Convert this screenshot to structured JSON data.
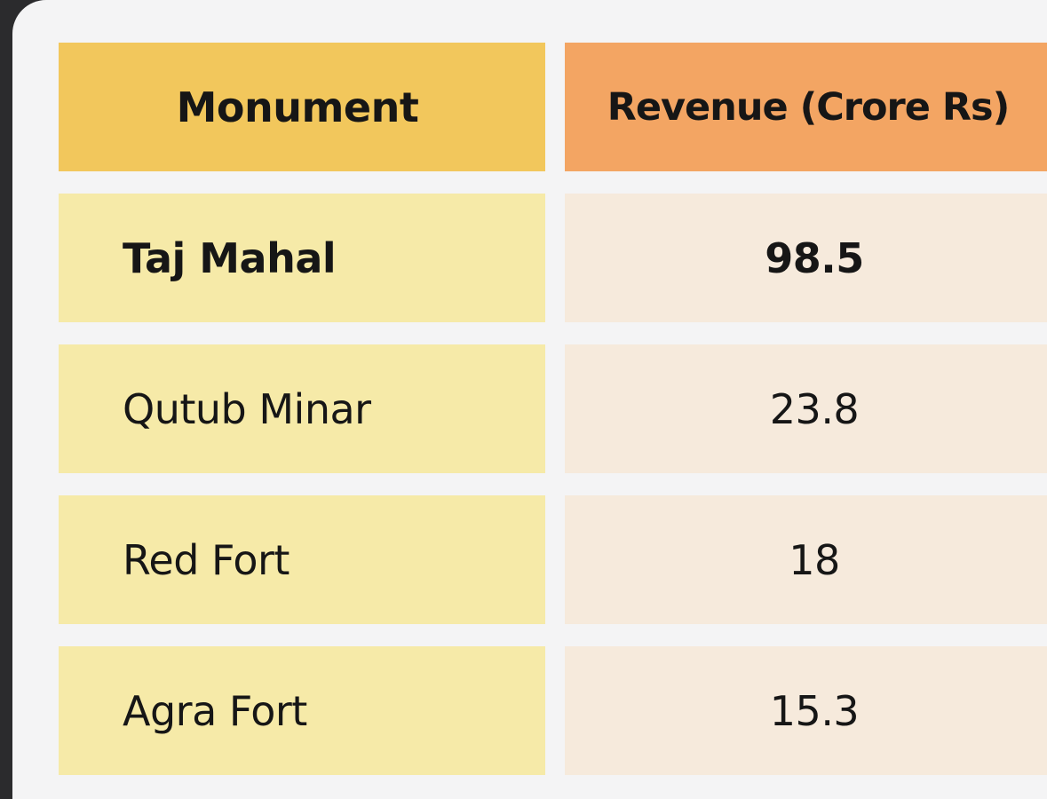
{
  "colors": {
    "header_monument": "#f2c75c",
    "header_revenue": "#f3a563",
    "body_monument": "#f6eaa8",
    "body_revenue": "#f6eadc",
    "frame": "#2b2b2d",
    "card": "#f4f4f5"
  },
  "chart_data": {
    "type": "table",
    "columns": [
      "Monument",
      "Revenue (Crore Rs)"
    ],
    "rows": [
      [
        "Taj Mahal",
        "98.5"
      ],
      [
        "Qutub Minar",
        "23.8"
      ],
      [
        "Red Fort",
        "18"
      ],
      [
        "Agra Fort",
        "15.3"
      ]
    ],
    "highlighted_row": "Taj Mahal"
  }
}
